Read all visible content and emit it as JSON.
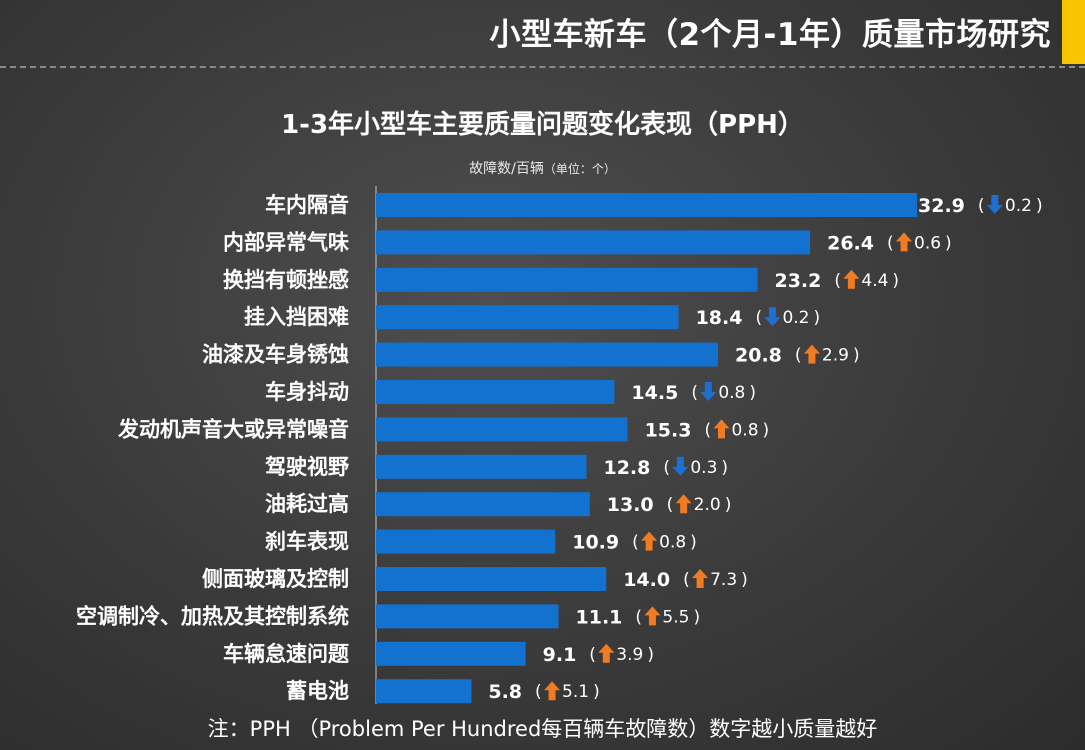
{
  "header": {
    "title": "小型车新车（2个月-1年）质量市场研究"
  },
  "chart_data": {
    "type": "bar",
    "orientation": "horizontal",
    "title": "1-3年小型车主要质量问题变化表现（PPH）",
    "unit_label": "故障数/百辆",
    "unit_note": "（单位：个）",
    "categories": [
      "车内隔音",
      "内部异常气味",
      "换挡有顿挫感",
      "挂入挡困难",
      "油漆及车身锈蚀",
      "车身抖动",
      "发动机声音大或异常噪音",
      "驾驶视野",
      "油耗过高",
      "刹车表现",
      "侧面玻璃及控制",
      "空调制冷、加热及其控制系统",
      "车辆怠速问题",
      "蓄电池"
    ],
    "values": [
      32.9,
      26.4,
      23.2,
      18.4,
      20.8,
      14.5,
      15.3,
      12.8,
      13.0,
      10.9,
      14.0,
      11.1,
      9.1,
      5.8
    ],
    "value_labels": [
      "32.9",
      "26.4",
      "23.2",
      "18.4",
      "20.8",
      "14.5",
      "15.3",
      "12.8",
      "13.0",
      "10.9",
      "14.0",
      "11.1",
      "9.1",
      "5.8"
    ],
    "change_direction": [
      "down",
      "up",
      "up",
      "down",
      "up",
      "down",
      "up",
      "down",
      "up",
      "up",
      "up",
      "up",
      "up",
      "up"
    ],
    "change_values": [
      "0.2",
      "0.6",
      "4.4",
      "0.2",
      "2.9",
      "0.8",
      "0.8",
      "0.3",
      "2.0",
      "0.8",
      "7.3",
      "5.5",
      "3.9",
      "5.1"
    ],
    "xlim": [
      0,
      32.9
    ],
    "grid": false,
    "legend": "none",
    "colors": {
      "bar": "#1372cf",
      "up_arrow": "#f07b22",
      "down_arrow": "#1d6fd1",
      "axis": "#c8c8c8",
      "accent": "#f8c300"
    }
  },
  "footnote": "注：PPH （Problem Per Hundred每百辆车故障数）数字越小质量越好"
}
